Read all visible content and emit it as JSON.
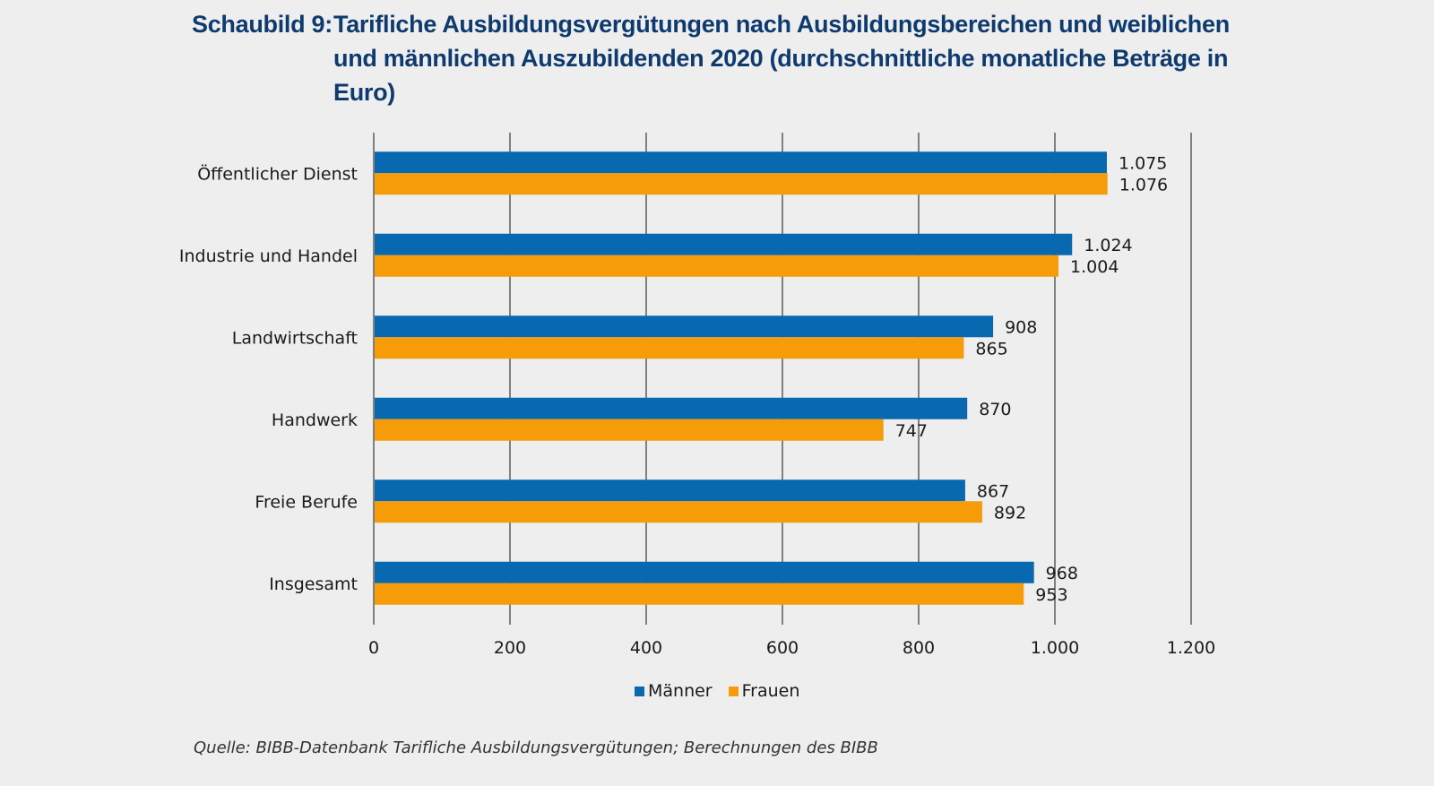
{
  "header": {
    "label": "Schaubild 9:",
    "title": "Tarifliche Ausbildungsvergütungen nach Ausbildungsbereichen und weiblichen und männlichen Auszubildenden 2020 (durchschnittliche monatliche Beträge in Euro)"
  },
  "source": "Quelle: BIBB-Datenbank Tarifliche Ausbildungsvergütungen; Berechnungen des BIBB",
  "chart_data": {
    "type": "bar",
    "orientation": "horizontal",
    "title": "Schaubild 9: Tarifliche Ausbildungsvergütungen nach Ausbildungsbereichen und weiblichen und männlichen Auszubildenden 2020 (durchschnittliche monatliche Beträge in Euro)",
    "xlabel": "",
    "ylabel": "",
    "categories": [
      "Öffentlicher Dienst",
      "Industrie und Handel",
      "Landwirtschaft",
      "Handwerk",
      "Freie Berufe",
      "Insgesamt"
    ],
    "series": [
      {
        "name": "Männer",
        "color": "#0868b0",
        "values": [
          1075,
          1024,
          908,
          870,
          867,
          968
        ],
        "labels": [
          "1.075",
          "1.024",
          "908",
          "870",
          "867",
          "968"
        ]
      },
      {
        "name": "Frauen",
        "color": "#f59c08",
        "values": [
          1076,
          1004,
          865,
          747,
          892,
          953
        ],
        "labels": [
          "1.076",
          "1.004",
          "865",
          "747",
          "892",
          "953"
        ]
      }
    ],
    "xlim": [
      0,
      1200
    ],
    "xticks": [
      0,
      200,
      400,
      600,
      800,
      1000,
      1200
    ],
    "xtick_labels": [
      "0",
      "200",
      "400",
      "600",
      "800",
      "1.000",
      "1.200"
    ],
    "grid": "vertical",
    "legend": "bottom-center",
    "gridline_color": "#808080"
  }
}
